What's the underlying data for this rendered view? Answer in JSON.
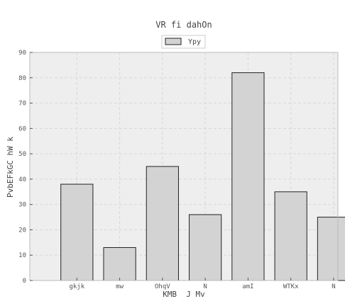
{
  "chart_data": {
    "type": "bar",
    "title": "VR fi dahOn",
    "xlabel": "KMB  J Mv",
    "ylabel": "PvbEFkGC hW k",
    "categories": [
      "gkjk",
      "mw",
      "OhqV",
      "N",
      "amI",
      "WTKx",
      "N"
    ],
    "series": [
      {
        "name": "Ypy",
        "values": [
          38,
          13,
          45,
          26,
          82,
          35,
          25
        ]
      }
    ],
    "ylim": [
      0,
      90
    ],
    "yticks": [
      0,
      10,
      20,
      30,
      40,
      50,
      60,
      70,
      80,
      90
    ],
    "grid": true,
    "legend": "top-center",
    "colors": {
      "bar_fill": "#d3d3d3",
      "bar_stroke": "#222222",
      "plot_bg": "#eeeeee",
      "grid": "#d8d8d8",
      "axes": "#bbbbbb"
    }
  }
}
